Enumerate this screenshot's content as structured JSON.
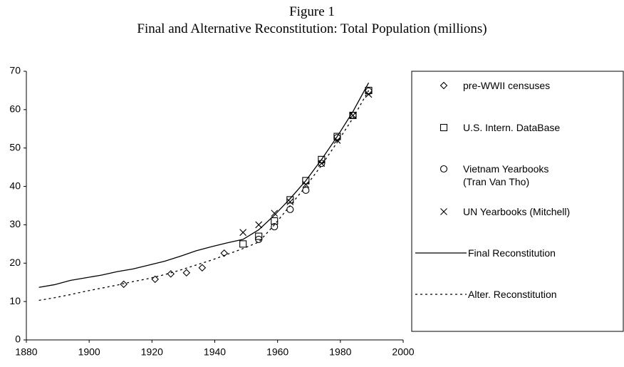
{
  "chart_data": {
    "type": "line",
    "title": "Figure 1",
    "subtitle": "Final and Alternative Reconstitution: Total Population (millions)",
    "xlim": [
      1880,
      2000
    ],
    "xticks": [
      1880,
      1900,
      1920,
      1940,
      1960,
      1980,
      2000
    ],
    "ylim": [
      0,
      70
    ],
    "yticks": [
      0,
      10,
      20,
      30,
      40,
      50,
      60,
      70
    ],
    "grid": false,
    "legend": "right",
    "series": [
      {
        "name": "pre-WWII censuses",
        "color": "#000000",
        "marker": "diamond",
        "x": [
          1911,
          1921,
          1926,
          1931,
          1936,
          1943
        ],
        "values": [
          14.5,
          15.8,
          17.2,
          17.5,
          18.8,
          22.6
        ]
      },
      {
        "name": "U.S. Intern. DataBase",
        "color": "#000000",
        "marker": "square",
        "x": [
          1949,
          1954,
          1959,
          1964,
          1969,
          1974,
          1979,
          1984,
          1989
        ],
        "values": [
          25,
          27,
          31,
          36.5,
          41.5,
          47,
          53,
          58.5,
          65
        ]
      },
      {
        "name": "Vietnam Yearbooks\n(Tran Van Tho)",
        "color": "#000000",
        "marker": "circle",
        "x": [
          1954,
          1959,
          1964,
          1969,
          1974,
          1979,
          1984,
          1989
        ],
        "values": [
          26.2,
          29.5,
          34,
          39,
          46,
          52.7,
          58.5,
          64.8
        ]
      },
      {
        "name": "UN Yearbooks (Mitchell)",
        "color": "#000000",
        "marker": "x",
        "x": [
          1949,
          1954,
          1959,
          1964,
          1969,
          1974,
          1979,
          1984,
          1989
        ],
        "values": [
          28,
          30,
          33,
          36,
          40.5,
          46,
          52,
          58.5,
          64
        ]
      },
      {
        "name": "Final Reconstitution",
        "color": "#000000",
        "linestyle": "solid",
        "x": [
          1884,
          1889,
          1894,
          1899,
          1904,
          1909,
          1914,
          1919,
          1924,
          1929,
          1934,
          1939,
          1944,
          1949,
          1954,
          1959,
          1964,
          1969,
          1974,
          1979,
          1984,
          1989
        ],
        "values": [
          13.7,
          14.4,
          15.5,
          16.2,
          16.9,
          17.8,
          18.5,
          19.5,
          20.5,
          21.8,
          23.2,
          24.3,
          25.3,
          26.2,
          28.7,
          32.5,
          36.8,
          41.5,
          47,
          53,
          59.5,
          67
        ]
      },
      {
        "name": "Alter. Reconstitution",
        "color": "#000000",
        "linestyle": "dotted",
        "x": [
          1884,
          1889,
          1894,
          1899,
          1904,
          1909,
          1914,
          1919,
          1924,
          1929,
          1934,
          1939,
          1944,
          1949,
          1954,
          1959,
          1964,
          1969,
          1974,
          1979,
          1984,
          1989
        ],
        "values": [
          10.3,
          11,
          11.8,
          12.7,
          13.5,
          14.3,
          15.2,
          16,
          17,
          18.2,
          19.5,
          20.8,
          22.3,
          23.8,
          25.5,
          30,
          35,
          40,
          45.5,
          51.5,
          57.8,
          65
        ]
      }
    ]
  }
}
